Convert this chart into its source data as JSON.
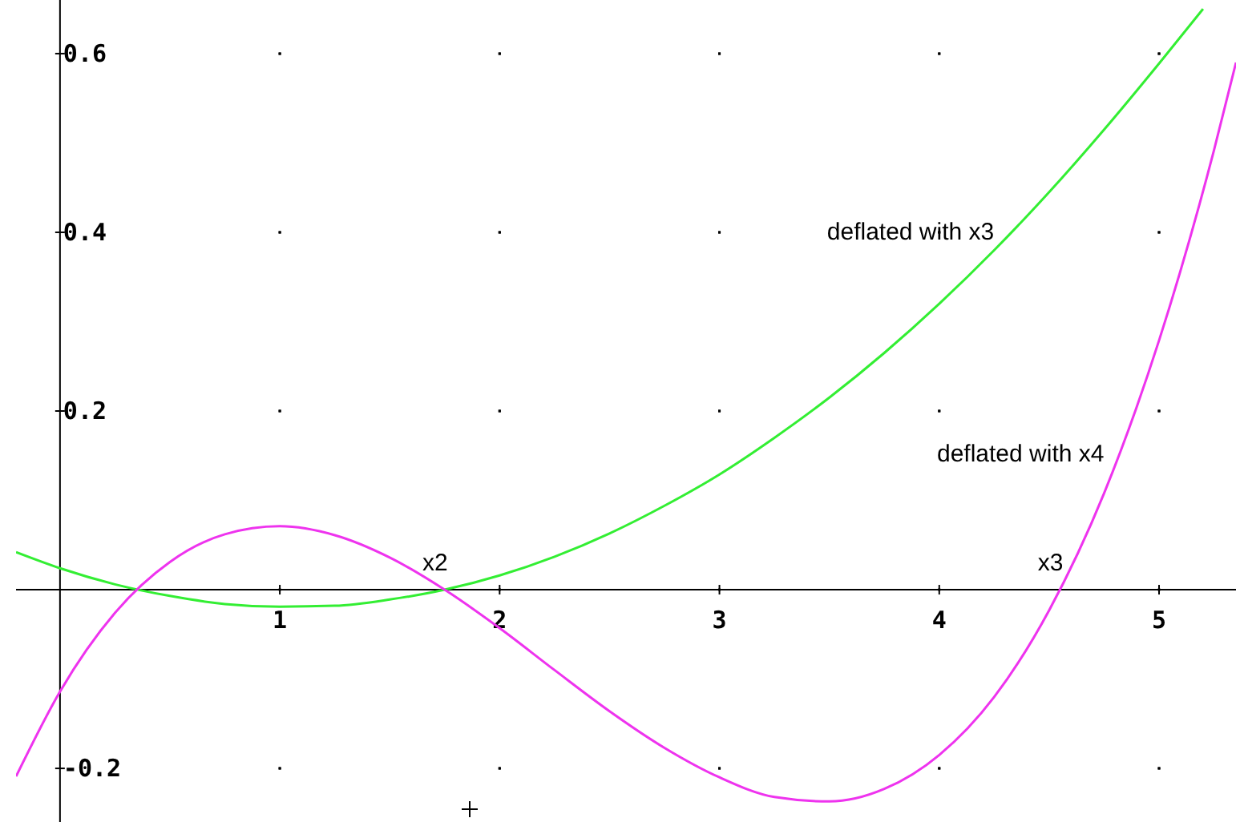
{
  "chart_data": {
    "type": "line",
    "x": [
      -0.2,
      0,
      0.25,
      0.5,
      0.75,
      1,
      1.25,
      1.5,
      1.75,
      2,
      2.25,
      2.5,
      2.75,
      3,
      3.25,
      3.5,
      3.75,
      4,
      4.25,
      4.5,
      4.75,
      5,
      5.2
    ],
    "series": [
      {
        "name": "deflated with x3",
        "color": "#33ee33",
        "values": [
          0.042,
          0.024,
          0.006,
          -0.007,
          -0.016,
          -0.019,
          -0.018,
          -0.011,
          0,
          0.016,
          0.037,
          0.063,
          0.094,
          0.129,
          0.17,
          0.215,
          0.265,
          0.32,
          0.38,
          0.445,
          0.515,
          0.589,
          0.65
        ]
      },
      {
        "name": "deflated with x4",
        "color": "#ee33ee",
        "x": [
          -0.2,
          0,
          0.25,
          0.5,
          0.75,
          1,
          1.25,
          1.5,
          1.75,
          2,
          2.25,
          2.5,
          2.75,
          3,
          3.25,
          3.5,
          3.75,
          4,
          4.25,
          4.5,
          4.75,
          5,
          5.25,
          5.35
        ],
        "values": [
          -0.209,
          -0.114,
          -0.026,
          0.031,
          0.062,
          0.071,
          0.061,
          0.036,
          0,
          -0.043,
          -0.09,
          -0.136,
          -0.177,
          -0.21,
          -0.232,
          -0.237,
          -0.223,
          -0.185,
          -0.12,
          -0.023,
          0.108,
          0.279,
          0.492,
          0.59
        ]
      }
    ],
    "annotations": [
      {
        "text": "x2",
        "x": 1.75,
        "y": 0
      },
      {
        "text": "x3",
        "x": 4.55,
        "y": 0
      }
    ],
    "xlim": [
      -0.2,
      5.35
    ],
    "ylim": [
      -0.26,
      0.66
    ],
    "xticks": [
      1,
      2,
      3,
      4,
      5
    ],
    "yticks": [
      -0.2,
      0.2,
      0.4,
      0.6
    ],
    "grid": true
  }
}
